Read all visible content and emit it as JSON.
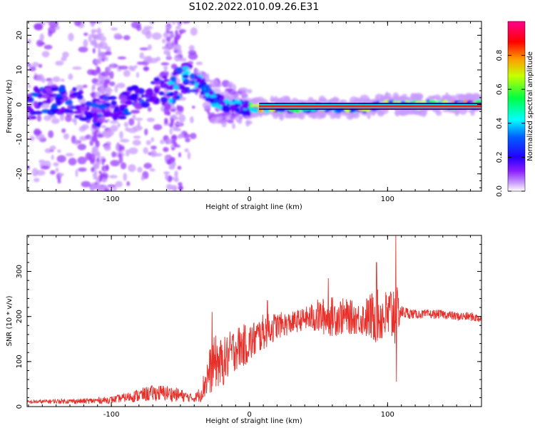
{
  "figure": {
    "title": "S102.2022.010.09.26.E31"
  },
  "chart_data": [
    {
      "type": "heatmap",
      "title": "S102.2022.010.09.26.E31",
      "xlabel": "Height of straight line (km)",
      "ylabel": "Frequency (Hz)",
      "xlim": [
        -161,
        168
      ],
      "ylim": [
        -25,
        24
      ],
      "xticks": [
        -100,
        0,
        100
      ],
      "yticks": [
        -20,
        -10,
        0,
        10,
        20
      ],
      "colorbar": {
        "label": "Normalized spectral amplitude",
        "range": [
          0,
          1
        ],
        "ticks": [
          0.0,
          0.2,
          0.4,
          0.6,
          0.8
        ],
        "tick_labels": [
          "0.0",
          "0.2",
          "0.4",
          "0.6",
          "0.8"
        ],
        "colormap": [
          "#ffffff",
          "#9a30ff",
          "#3b00ff",
          "#0000ff",
          "#00ffff",
          "#00ff40",
          "#ffff00",
          "#ff8000",
          "#ff0000",
          "#ff0090"
        ]
      },
      "ridge": [
        {
          "x": -155,
          "f": 1
        },
        {
          "x": -140,
          "f": 1.5
        },
        {
          "x": -125,
          "f": 0.5
        },
        {
          "x": -110,
          "f": -2
        },
        {
          "x": -95,
          "f": -1
        },
        {
          "x": -80,
          "f": 2
        },
        {
          "x": -70,
          "f": 3
        },
        {
          "x": -55,
          "f": 5
        },
        {
          "x": -45,
          "f": 8
        },
        {
          "x": -38,
          "f": 7
        },
        {
          "x": -32,
          "f": 4
        },
        {
          "x": -25,
          "f": 1
        },
        {
          "x": -15,
          "f": 0
        },
        {
          "x": -5,
          "f": -1
        },
        {
          "x": 5,
          "f": -1
        },
        {
          "x": 20,
          "f": -1
        },
        {
          "x": 40,
          "f": -1
        },
        {
          "x": 60,
          "f": -1
        },
        {
          "x": 80,
          "f": -1
        },
        {
          "x": 100,
          "f": 0
        },
        {
          "x": 120,
          "f": 0
        },
        {
          "x": 140,
          "f": 0
        },
        {
          "x": 168,
          "f": 0
        }
      ],
      "strong_band": {
        "x_start": 7,
        "x_end": 168,
        "f": -0.5
      }
    },
    {
      "type": "line",
      "xlabel": "Height of straight line (km)",
      "ylabel": "SNR (10 * v/v)",
      "xlim": [
        -161,
        168
      ],
      "ylim": [
        0,
        380
      ],
      "xticks": [
        -100,
        0,
        100
      ],
      "yticks": [
        0,
        100,
        200,
        300
      ],
      "color": "#e8302b",
      "series": [
        {
          "x": [
            -161,
            -140,
            -120,
            -100,
            -90,
            -80,
            -70,
            -60,
            -50,
            -40,
            -35,
            -30,
            -25,
            -20,
            -10,
            0,
            10,
            20,
            30,
            40,
            50,
            60,
            70,
            80,
            90,
            100,
            105,
            110,
            120,
            130,
            140,
            150,
            160,
            168
          ],
          "values": [
            10,
            12,
            12,
            15,
            20,
            25,
            30,
            30,
            25,
            18,
            30,
            70,
            100,
            95,
            130,
            140,
            165,
            180,
            185,
            195,
            200,
            200,
            200,
            195,
            200,
            200,
            210,
            210,
            205,
            205,
            205,
            200,
            200,
            195
          ],
          "noise": [
            4,
            5,
            6,
            8,
            10,
            15,
            18,
            18,
            15,
            8,
            20,
            50,
            60,
            55,
            50,
            45,
            40,
            30,
            25,
            25,
            40,
            45,
            40,
            35,
            60,
            60,
            80,
            15,
            10,
            10,
            10,
            10,
            10,
            10
          ]
        }
      ],
      "spikes": [
        {
          "x": -27,
          "y": 210
        },
        {
          "x": 13,
          "y": 235
        },
        {
          "x": 57,
          "y": 285
        },
        {
          "x": 92,
          "y": 320
        },
        {
          "x": 106,
          "y": 380
        },
        {
          "x": 106.5,
          "y": 55
        }
      ]
    }
  ]
}
